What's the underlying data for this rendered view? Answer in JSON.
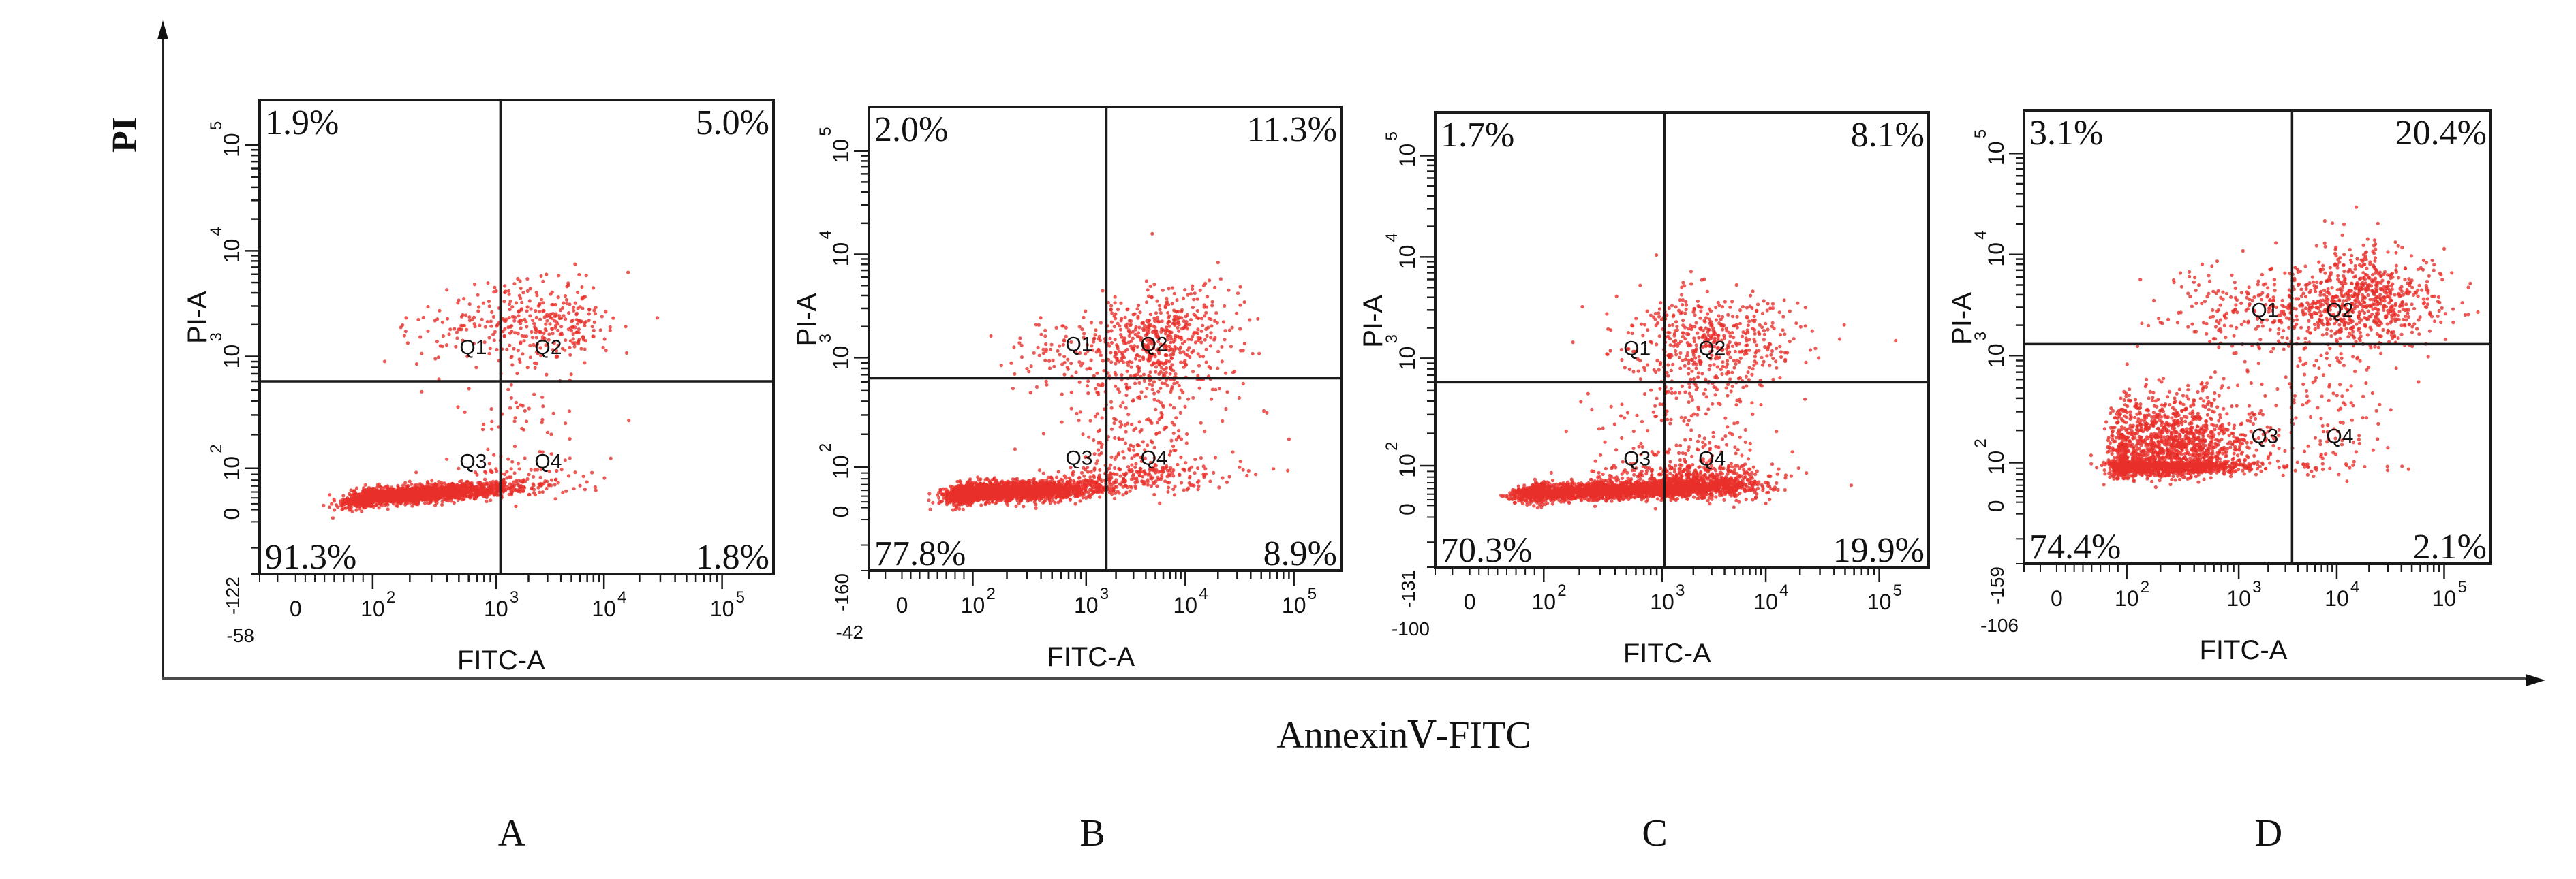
{
  "chart_data": {
    "type": "scatter",
    "figure_type": "flow cytometry apoptosis quadrant plots (Annexin V-FITC / PI)",
    "global_axes": {
      "ylabel": "PI",
      "xlabel": "AnnexinⅤ-FITC"
    },
    "panels": [
      {
        "id": "A",
        "label": "A",
        "xlabel": "FITC-A",
        "ylabel": "PI-A",
        "x_min_label": "-58",
        "y_min_label": "-122",
        "x_ticks": [
          "0",
          "10",
          "10",
          "10",
          "10"
        ],
        "x_tick_exponents": [
          "",
          "2",
          "3",
          "4",
          "5"
        ],
        "y_ticks": [
          "0",
          "10",
          "10",
          "10",
          "10"
        ],
        "y_tick_exponents": [
          "",
          "2",
          "3",
          "4",
          "5"
        ],
        "quadrant_gate": {
          "x": 1100,
          "y": 600
        },
        "quadrants": {
          "Q1": {
            "name": "Q1",
            "percent": "1.9%",
            "value": 1.9
          },
          "Q2": {
            "name": "Q2",
            "percent": "5.0%",
            "value": 5.0
          },
          "Q3": {
            "name": "Q3",
            "percent": "91.3%",
            "value": 91.3
          },
          "Q4": {
            "name": "Q4",
            "percent": "1.8%",
            "value": 1.8
          }
        },
        "populations": [
          {
            "x_log": 2.3,
            "y_log": 0.85,
            "sx": 0.45,
            "sy": 0.18,
            "tilt": 0.35,
            "n": 2200
          },
          {
            "x_log": 3.5,
            "y_log": 3.3,
            "sx": 0.35,
            "sy": 0.2,
            "tilt": 0.0,
            "n": 260
          },
          {
            "x_log": 2.8,
            "y_log": 3.3,
            "sx": 0.4,
            "sy": 0.2,
            "tilt": 0.0,
            "n": 100
          },
          {
            "x_log": 3.2,
            "y_log": 1.9,
            "sx": 0.35,
            "sy": 0.6,
            "tilt": 0.0,
            "n": 120
          }
        ]
      },
      {
        "id": "B",
        "label": "B",
        "xlabel": "FITC-A",
        "ylabel": "PI-A",
        "x_min_label": "-42",
        "y_min_label": "-160",
        "x_ticks": [
          "0",
          "10",
          "10",
          "10",
          "10"
        ],
        "x_tick_exponents": [
          "",
          "2",
          "3",
          "4",
          "5"
        ],
        "y_ticks": [
          "0",
          "10",
          "10",
          "10",
          "10"
        ],
        "y_tick_exponents": [
          "",
          "2",
          "3",
          "4",
          "5"
        ],
        "quadrant_gate": {
          "x": 1600,
          "y": 650
        },
        "quadrants": {
          "Q1": {
            "name": "Q1",
            "percent": "2.0%",
            "value": 2.0
          },
          "Q2": {
            "name": "Q2",
            "percent": "11.3%",
            "value": 11.3
          },
          "Q3": {
            "name": "Q3",
            "percent": "77.8%",
            "value": 77.8
          },
          "Q4": {
            "name": "Q4",
            "percent": "8.9%",
            "value": 8.9
          }
        },
        "populations": [
          {
            "x_log": 2.25,
            "y_log": 0.9,
            "sx": 0.45,
            "sy": 0.22,
            "tilt": 0.2,
            "n": 2200
          },
          {
            "x_log": 3.75,
            "y_log": 3.15,
            "sx": 0.35,
            "sy": 0.25,
            "tilt": 0.2,
            "n": 520
          },
          {
            "x_log": 3.6,
            "y_log": 2.0,
            "sx": 0.4,
            "sy": 0.55,
            "tilt": 0.0,
            "n": 420
          },
          {
            "x_log": 2.8,
            "y_log": 3.05,
            "sx": 0.3,
            "sy": 0.2,
            "tilt": 0.0,
            "n": 90
          }
        ]
      },
      {
        "id": "C",
        "label": "C",
        "xlabel": "FITC-A",
        "ylabel": "PI-A",
        "x_min_label": "-100",
        "y_min_label": "-131",
        "x_ticks": [
          "0",
          "10",
          "10",
          "10",
          "10"
        ],
        "x_tick_exponents": [
          "",
          "2",
          "3",
          "4",
          "5"
        ],
        "y_ticks": [
          "0",
          "10",
          "10",
          "10",
          "10"
        ],
        "y_tick_exponents": [
          "",
          "2",
          "3",
          "4",
          "5"
        ],
        "quadrant_gate": {
          "x": 1050,
          "y": 600
        },
        "quadrants": {
          "Q1": {
            "name": "Q1",
            "percent": "1.7%",
            "value": 1.7
          },
          "Q2": {
            "name": "Q2",
            "percent": "8.1%",
            "value": 8.1
          },
          "Q3": {
            "name": "Q3",
            "percent": "70.3%",
            "value": 70.3
          },
          "Q4": {
            "name": "Q4",
            "percent": "19.9%",
            "value": 19.9
          }
        },
        "populations": [
          {
            "x_log": 2.5,
            "y_log": 0.85,
            "sx": 0.55,
            "sy": 0.2,
            "tilt": 0.15,
            "n": 2200
          },
          {
            "x_log": 3.35,
            "y_log": 1.1,
            "sx": 0.3,
            "sy": 0.3,
            "tilt": 0.0,
            "n": 600
          },
          {
            "x_log": 3.5,
            "y_log": 3.2,
            "sx": 0.4,
            "sy": 0.25,
            "tilt": 0.0,
            "n": 450
          },
          {
            "x_log": 3.3,
            "y_log": 2.1,
            "sx": 0.45,
            "sy": 0.55,
            "tilt": 0.0,
            "n": 380
          }
        ]
      },
      {
        "id": "D",
        "label": "D",
        "xlabel": "FITC-A",
        "ylabel": "PI-A",
        "x_min_label": "-106",
        "y_min_label": "-159",
        "x_ticks": [
          "0",
          "10",
          "10",
          "10",
          "10"
        ],
        "x_tick_exponents": [
          "",
          "2",
          "3",
          "4",
          "5"
        ],
        "y_ticks": [
          "0",
          "10",
          "10",
          "10",
          "10"
        ],
        "y_tick_exponents": [
          "",
          "2",
          "3",
          "4",
          "5"
        ],
        "quadrant_gate": {
          "x": 3500,
          "y": 1300
        },
        "quadrants": {
          "Q1": {
            "name": "Q1",
            "percent": "3.1%",
            "value": 3.1
          },
          "Q2": {
            "name": "Q2",
            "percent": "20.4%",
            "value": 20.4
          },
          "Q3": {
            "name": "Q3",
            "percent": "74.4%",
            "value": 74.4
          },
          "Q4": {
            "name": "Q4",
            "percent": "2.1%",
            "value": 2.1
          }
        },
        "populations": [
          {
            "x_log": 2.35,
            "y_log": 2.0,
            "sx": 0.38,
            "sy": 0.3,
            "tilt": 0.1,
            "n": 2200
          },
          {
            "x_log": 4.25,
            "y_log": 3.55,
            "sx": 0.35,
            "sy": 0.25,
            "tilt": 0.0,
            "n": 700
          },
          {
            "x_log": 3.2,
            "y_log": 3.45,
            "sx": 0.45,
            "sy": 0.22,
            "tilt": 0.0,
            "n": 260
          },
          {
            "x_log": 3.9,
            "y_log": 2.4,
            "sx": 0.35,
            "sy": 0.45,
            "tilt": 0.0,
            "n": 150
          }
        ]
      }
    ],
    "colors": {
      "points": "#e8302a",
      "frame": "#1a1a1a",
      "text": "#111111"
    }
  }
}
